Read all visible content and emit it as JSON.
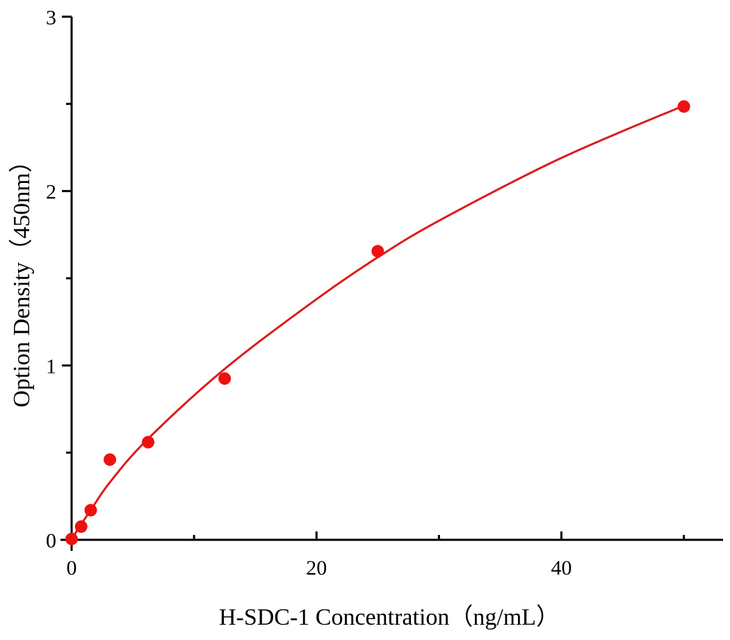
{
  "chart_data": {
    "type": "scatter",
    "title": "",
    "xlabel": "H-SDC-1 Concentration（ng/mL）",
    "ylabel": "Option Density（450nm）",
    "xlim": [
      0,
      53.2
    ],
    "ylim": [
      0,
      3
    ],
    "xticks": [
      0,
      20,
      40
    ],
    "xminor": [
      10,
      30,
      50
    ],
    "yticks": [
      0,
      1,
      2,
      3
    ],
    "yminor": [
      0.5,
      1.5,
      2.5
    ],
    "grid": false,
    "colors": {
      "points": "#ee1111",
      "curve": "#dd1a1a",
      "axes": "#000000"
    },
    "points": {
      "x": [
        0,
        0.78,
        1.56,
        3.125,
        6.25,
        12.5,
        25,
        50
      ],
      "y": [
        0.005,
        0.076,
        0.17,
        0.46,
        0.56,
        0.925,
        1.655,
        2.485
      ]
    },
    "fit_curve": {
      "x": [
        0,
        0.5,
        1.56,
        3.125,
        6.25,
        12.5,
        20,
        25,
        30,
        40,
        50
      ],
      "y": [
        0,
        0.06,
        0.17,
        0.33,
        0.58,
        0.98,
        1.38,
        1.62,
        1.83,
        2.19,
        2.49
      ]
    }
  }
}
